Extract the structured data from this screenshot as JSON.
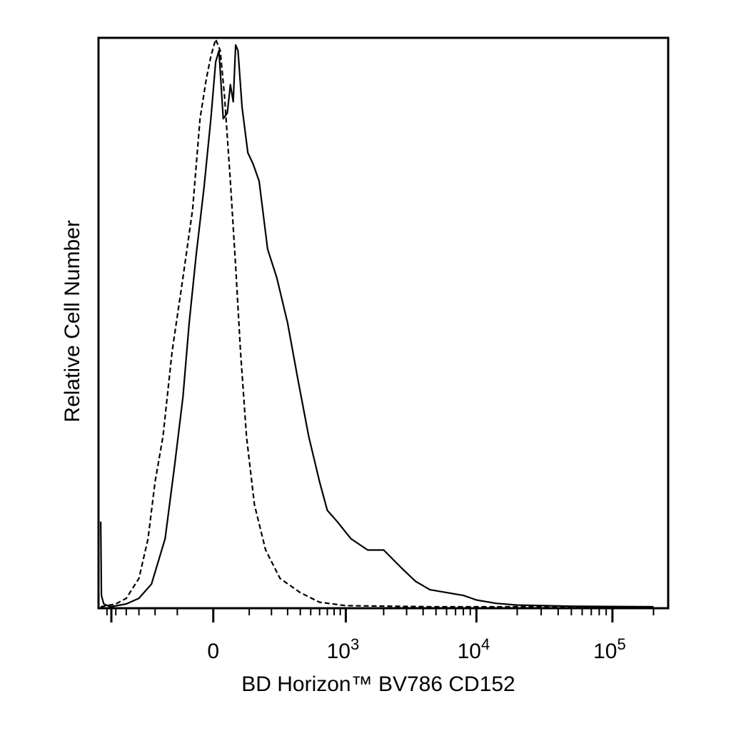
{
  "chart_data": {
    "type": "line",
    "title": "",
    "xlabel": "BD Horizon™ BV786 CD152",
    "ylabel": "Relative Cell Number",
    "x_scale": "biexponential",
    "x_ticks": [
      {
        "value": 0,
        "base": "0",
        "exp": ""
      },
      {
        "value": 1000,
        "base": "10",
        "exp": "3"
      },
      {
        "value": 10000,
        "base": "10",
        "exp": "4"
      },
      {
        "value": 100000,
        "base": "10",
        "exp": "5"
      }
    ],
    "xlim": [
      -700,
      250000
    ],
    "ylim": [
      0,
      100
    ],
    "grid": false,
    "legend": "none",
    "series": [
      {
        "style": "solid",
        "color": "#000000",
        "points": [
          [
            -680,
            15
          ],
          [
            -670,
            2
          ],
          [
            -640,
            0.5
          ],
          [
            -560,
            0
          ],
          [
            -400,
            0.5
          ],
          [
            -300,
            1.5
          ],
          [
            -220,
            4
          ],
          [
            -150,
            12
          ],
          [
            -110,
            25
          ],
          [
            -80,
            37
          ],
          [
            -60,
            50
          ],
          [
            -40,
            62
          ],
          [
            -20,
            74
          ],
          [
            -5,
            86
          ],
          [
            5,
            96
          ],
          [
            12,
            98
          ],
          [
            22,
            86
          ],
          [
            32,
            87
          ],
          [
            40,
            92
          ],
          [
            48,
            89
          ],
          [
            55,
            99
          ],
          [
            62,
            98
          ],
          [
            75,
            88
          ],
          [
            95,
            80
          ],
          [
            115,
            78
          ],
          [
            140,
            75
          ],
          [
            180,
            63
          ],
          [
            230,
            58
          ],
          [
            300,
            50
          ],
          [
            380,
            40
          ],
          [
            480,
            30
          ],
          [
            600,
            22
          ],
          [
            700,
            17
          ],
          [
            850,
            15
          ],
          [
            1100,
            12
          ],
          [
            1500,
            10
          ],
          [
            2000,
            10
          ],
          [
            2700,
            7
          ],
          [
            3500,
            4.5
          ],
          [
            4500,
            3
          ],
          [
            6000,
            2.5
          ],
          [
            8000,
            2
          ],
          [
            10000,
            1.2
          ],
          [
            14000,
            0.6
          ],
          [
            20000,
            0.3
          ],
          [
            50000,
            0.1
          ],
          [
            200000,
            0
          ]
        ]
      },
      {
        "style": "dashed",
        "color": "#000000",
        "points": [
          [
            -680,
            0
          ],
          [
            -500,
            0.5
          ],
          [
            -400,
            1.5
          ],
          [
            -300,
            5
          ],
          [
            -240,
            12
          ],
          [
            -200,
            22
          ],
          [
            -160,
            30
          ],
          [
            -120,
            45
          ],
          [
            -80,
            58
          ],
          [
            -50,
            70
          ],
          [
            -30,
            86
          ],
          [
            -15,
            93
          ],
          [
            -5,
            97
          ],
          [
            5,
            100
          ],
          [
            15,
            98
          ],
          [
            25,
            90
          ],
          [
            40,
            75
          ],
          [
            55,
            60
          ],
          [
            70,
            45
          ],
          [
            90,
            30
          ],
          [
            120,
            18
          ],
          [
            170,
            10
          ],
          [
            250,
            5
          ],
          [
            400,
            2.5
          ],
          [
            600,
            0.8
          ],
          [
            1000,
            0.2
          ],
          [
            5000,
            0
          ],
          [
            200000,
            0
          ]
        ]
      }
    ]
  }
}
